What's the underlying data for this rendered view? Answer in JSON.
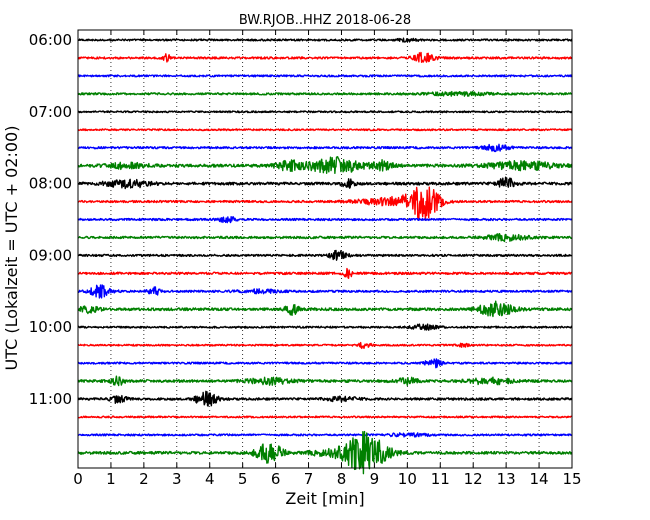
{
  "chart_data": {
    "type": "line",
    "title": "BW.RJOB..HHZ 2018-06-28",
    "xlabel": "Zeit  [min]",
    "ylabel": "UTC (Lokalzeit = UTC + 02:00)",
    "xlim": [
      0,
      15
    ],
    "x_ticks": [
      "0",
      "1",
      "2",
      "3",
      "4",
      "5",
      "6",
      "7",
      "8",
      "9",
      "10",
      "11",
      "12",
      "13",
      "14",
      "15"
    ],
    "y_ticks": [
      "06:00",
      "07:00",
      "08:00",
      "09:00",
      "10:00",
      "11:00"
    ],
    "grid": true,
    "trace_colors": [
      "#000000",
      "#ff0000",
      "#0000ff",
      "#008000"
    ],
    "traces": [
      {
        "start": "06:00",
        "noise": 0.9,
        "events": [
          {
            "t": 10.0,
            "amp": 1.2,
            "dur": 0.5
          }
        ]
      },
      {
        "start": "06:15",
        "noise": 1.0,
        "events": [
          {
            "t": 2.7,
            "amp": 4.5,
            "dur": 0.15
          },
          {
            "t": 10.5,
            "amp": 5.0,
            "dur": 0.5
          }
        ]
      },
      {
        "start": "06:30",
        "noise": 0.9,
        "events": []
      },
      {
        "start": "06:45",
        "noise": 1.0,
        "events": [
          {
            "t": 11.5,
            "amp": 1.5,
            "dur": 1.5
          }
        ]
      },
      {
        "start": "07:00",
        "noise": 0.8,
        "events": []
      },
      {
        "start": "07:15",
        "noise": 0.8,
        "events": []
      },
      {
        "start": "07:30",
        "noise": 1.0,
        "events": [
          {
            "t": 12.7,
            "amp": 3.0,
            "dur": 0.6
          }
        ]
      },
      {
        "start": "07:45",
        "noise": 1.5,
        "events": [
          {
            "t": 1.5,
            "amp": 3.0,
            "dur": 0.8
          },
          {
            "t": 6.4,
            "amp": 4.5,
            "dur": 0.6
          },
          {
            "t": 7.8,
            "amp": 8.0,
            "dur": 1.2
          },
          {
            "t": 9.3,
            "amp": 4.5,
            "dur": 0.5
          },
          {
            "t": 13.5,
            "amp": 4.0,
            "dur": 1.5
          }
        ]
      },
      {
        "start": "08:00",
        "noise": 1.3,
        "events": [
          {
            "t": 1.5,
            "amp": 4.0,
            "dur": 1.0
          },
          {
            "t": 8.2,
            "amp": 4.0,
            "dur": 0.3
          },
          {
            "t": 13.0,
            "amp": 6.0,
            "dur": 0.4
          }
        ]
      },
      {
        "start": "08:15",
        "noise": 1.0,
        "events": [
          {
            "t": 9.5,
            "amp": 4.0,
            "dur": 1.5
          },
          {
            "t": 10.5,
            "amp": 17.0,
            "dur": 0.7
          }
        ]
      },
      {
        "start": "08:30",
        "noise": 1.0,
        "events": [
          {
            "t": 4.5,
            "amp": 3.5,
            "dur": 0.4
          }
        ]
      },
      {
        "start": "08:45",
        "noise": 1.1,
        "events": [
          {
            "t": 13.0,
            "amp": 3.0,
            "dur": 1.0
          }
        ]
      },
      {
        "start": "09:00",
        "noise": 1.0,
        "events": [
          {
            "t": 7.9,
            "amp": 4.5,
            "dur": 0.4
          }
        ]
      },
      {
        "start": "09:15",
        "noise": 1.1,
        "events": [
          {
            "t": 8.2,
            "amp": 4.0,
            "dur": 0.2
          }
        ]
      },
      {
        "start": "09:30",
        "noise": 1.0,
        "events": [
          {
            "t": 0.7,
            "amp": 6.0,
            "dur": 0.5
          },
          {
            "t": 2.3,
            "amp": 4.0,
            "dur": 0.3
          },
          {
            "t": 5.5,
            "amp": 1.5,
            "dur": 1.0
          }
        ]
      },
      {
        "start": "09:45",
        "noise": 1.3,
        "events": [
          {
            "t": 0.3,
            "amp": 3.0,
            "dur": 0.5
          },
          {
            "t": 6.5,
            "amp": 5.0,
            "dur": 0.3
          },
          {
            "t": 12.7,
            "amp": 7.0,
            "dur": 0.8
          }
        ]
      },
      {
        "start": "10:00",
        "noise": 0.9,
        "events": [
          {
            "t": 10.5,
            "amp": 2.5,
            "dur": 0.6
          }
        ]
      },
      {
        "start": "10:15",
        "noise": 0.8,
        "events": [
          {
            "t": 8.7,
            "amp": 3.0,
            "dur": 0.3
          },
          {
            "t": 11.7,
            "amp": 1.5,
            "dur": 0.3
          }
        ]
      },
      {
        "start": "10:30",
        "noise": 0.9,
        "events": [
          {
            "t": 10.8,
            "amp": 5.5,
            "dur": 0.35
          }
        ]
      },
      {
        "start": "10:45",
        "noise": 1.3,
        "events": [
          {
            "t": 1.2,
            "amp": 4.0,
            "dur": 0.3
          },
          {
            "t": 5.8,
            "amp": 3.0,
            "dur": 1.0
          },
          {
            "t": 10.0,
            "amp": 3.0,
            "dur": 0.5
          },
          {
            "t": 12.5,
            "amp": 3.0,
            "dur": 1.0
          }
        ]
      },
      {
        "start": "11:00",
        "noise": 1.1,
        "events": [
          {
            "t": 1.2,
            "amp": 3.5,
            "dur": 0.4
          },
          {
            "t": 3.9,
            "amp": 7.0,
            "dur": 0.5
          },
          {
            "t": 8.0,
            "amp": 2.0,
            "dur": 0.8
          }
        ]
      },
      {
        "start": "11:15",
        "noise": 0.8,
        "events": []
      },
      {
        "start": "11:30",
        "noise": 0.9,
        "events": [
          {
            "t": 10.0,
            "amp": 1.5,
            "dur": 1.0
          }
        ]
      },
      {
        "start": "11:45",
        "noise": 1.3,
        "events": [
          {
            "t": 5.8,
            "amp": 11.0,
            "dur": 0.6
          },
          {
            "t": 8.7,
            "amp": 20.0,
            "dur": 1.0
          },
          {
            "t": 7.5,
            "amp": 2.5,
            "dur": 0.8
          }
        ]
      }
    ]
  }
}
